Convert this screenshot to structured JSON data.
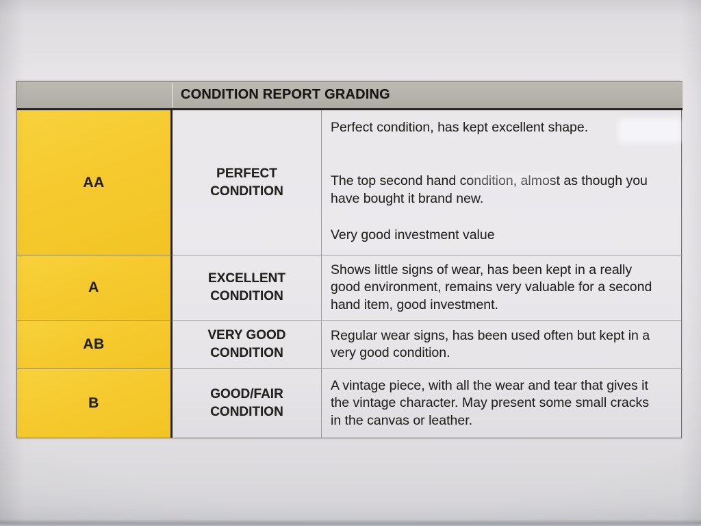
{
  "table": {
    "header": "CONDITION REPORT GRADING",
    "colors": {
      "grade_column_bg": "#f6ca2f",
      "header_bg": "#b5b1ab",
      "text": "#22211d"
    },
    "rows": [
      {
        "grade": "AA",
        "condition": "PERFECT CONDITION",
        "descriptions": [
          "Perfect condition, has kept excellent shape.",
          "The top second hand condition, almost as though you have bought it brand new.",
          "Very good investment value"
        ]
      },
      {
        "grade": "A",
        "condition": "EXCELLENT CONDITION",
        "descriptions": [
          "Shows little signs of wear, has been kept in a really good environment, remains very valuable for a second hand item, good investment."
        ]
      },
      {
        "grade": "AB",
        "condition": "VERY GOOD CONDITION",
        "descriptions": [
          "Regular wear signs, has been used often but kept in a very good condition."
        ]
      },
      {
        "grade": "B",
        "condition": "GOOD/FAIR CONDITION",
        "descriptions": [
          "A vintage piece, with all the wear and tear that gives it the vintage character. May present some small cracks in the canvas or leather."
        ]
      }
    ]
  }
}
